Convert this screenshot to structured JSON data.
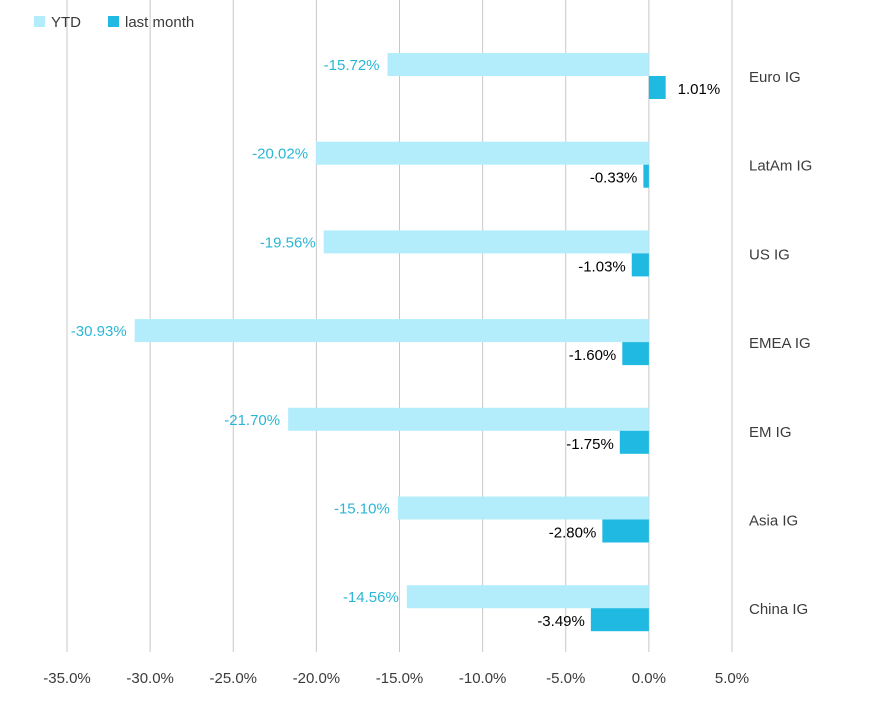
{
  "chart_data": {
    "type": "bar",
    "orientation": "horizontal",
    "categories": [
      "Euro IG",
      "LatAm IG",
      "US IG",
      "EMEA IG",
      "EM IG",
      "Asia IG",
      "China IG"
    ],
    "series": [
      {
        "name": "YTD",
        "color": "#b3ecfb",
        "label_color": "#2ab6d6",
        "values": [
          -15.72,
          -20.02,
          -19.56,
          -30.93,
          -21.7,
          -15.1,
          -14.56
        ],
        "labels": [
          "-15.72%",
          "-20.02%",
          "-19.56%",
          "-30.93%",
          "-21.70%",
          "-15.10%",
          "-14.56%"
        ]
      },
      {
        "name": "last month",
        "color": "#1fb9e1",
        "label_color": "#000000",
        "values": [
          1.01,
          -0.33,
          -1.03,
          -1.6,
          -1.75,
          -2.8,
          -3.49
        ],
        "labels": [
          "1.01%",
          "-0.33%",
          "-1.03%",
          "-1.60%",
          "-1.75%",
          "-2.80%",
          "-3.49%"
        ]
      }
    ],
    "x_ticks": [
      -35,
      -30,
      -25,
      -20,
      -15,
      -10,
      -5,
      0,
      5
    ],
    "x_tick_labels": [
      "-35.0%",
      "-30.0%",
      "-25.0%",
      "-20.0%",
      "-15.0%",
      "-10.0%",
      "-5.0%",
      "0.0%",
      "5.0%"
    ],
    "xlim": [
      -35,
      5
    ],
    "grid": "vertical",
    "legend_position": "top-left",
    "title": "",
    "xlabel": "",
    "ylabel": "",
    "colors": {
      "gridline": "#c8c8c8",
      "category_text": "#3b3b3b",
      "tick_text": "#3b3b3b",
      "legend_text": "#3b3b3b"
    }
  }
}
